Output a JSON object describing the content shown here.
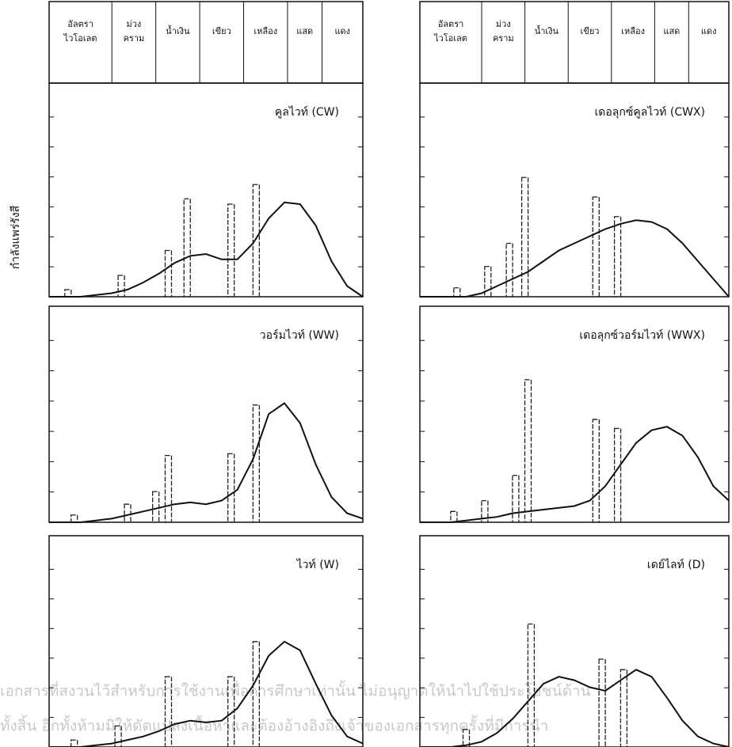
{
  "y_axis_label": "กำลังแพร่รังสี",
  "header": {
    "left": [
      "อัลตรา ไวโอเลต",
      "ม่วง คราม",
      "น้ำเงิน",
      "เขียว",
      "เหลือง",
      "แสด",
      "แดง"
    ],
    "right": [
      "อัลตรา ไวโอเลต",
      "ม่วง คราม",
      "น้ำเงิน",
      "เขียว",
      "เหลือง",
      "แสด",
      "แดง"
    ]
  },
  "watermark": [
    "เอกสารที่สงวนไว้สำหรับการใช้งานเพื่อการศึกษาเท่านั้น ไม่อนุญาตให้นำไปใช้ประโยชน์ด้าน",
    "ทั้งสิ้น อีกทั้งห้ามมิให้ดัดแปลงเนื้อหาและต้องอ้างอิงถึงเจ้าของเอกสารทุกครั้งที่มีการนำ"
  ],
  "chart_data": [
    {
      "type": "line",
      "title": "คูลไวท์ (CW)",
      "color": "#111111",
      "xlim": [
        0,
        100
      ],
      "ylim": [
        0,
        100
      ],
      "x": [
        0,
        5,
        10,
        15,
        20,
        25,
        30,
        35,
        40,
        45,
        50,
        55,
        60,
        65,
        70,
        75,
        80,
        85,
        90,
        95,
        100
      ],
      "values": [
        0,
        0,
        0,
        1,
        2,
        4,
        8,
        13,
        19,
        23,
        24,
        21,
        21,
        30,
        44,
        53,
        52,
        40,
        20,
        6,
        0
      ],
      "bar_x": [
        6,
        23,
        38,
        44,
        58,
        66
      ],
      "bar_values": [
        4,
        12,
        26,
        55,
        52,
        63
      ]
    },
    {
      "type": "line",
      "title": "เดอลุกซ์คูลไวท์ (CWX)",
      "color": "#111111",
      "xlim": [
        0,
        100
      ],
      "ylim": [
        0,
        100
      ],
      "x": [
        0,
        5,
        10,
        15,
        20,
        25,
        30,
        35,
        40,
        45,
        50,
        55,
        60,
        65,
        70,
        75,
        80,
        85,
        90,
        95,
        100
      ],
      "values": [
        0,
        0,
        0,
        0,
        2,
        6,
        10,
        14,
        20,
        26,
        30,
        34,
        38,
        41,
        43,
        42,
        38,
        30,
        20,
        10,
        0
      ],
      "bar_x": [
        12,
        22,
        29,
        34,
        57,
        64
      ],
      "bar_values": [
        5,
        17,
        30,
        67,
        56,
        45
      ]
    },
    {
      "type": "line",
      "title": "วอร์มไวท์ (WW)",
      "color": "#111111",
      "xlim": [
        0,
        100
      ],
      "ylim": [
        0,
        100
      ],
      "x": [
        0,
        5,
        10,
        15,
        20,
        25,
        30,
        35,
        40,
        45,
        50,
        55,
        60,
        65,
        70,
        75,
        80,
        85,
        90,
        95,
        100
      ],
      "values": [
        0,
        0,
        0,
        1,
        2,
        4,
        6,
        8,
        10,
        11,
        10,
        12,
        18,
        35,
        60,
        66,
        55,
        32,
        14,
        5,
        2
      ],
      "bar_x": [
        8,
        25,
        34,
        38,
        58,
        66
      ],
      "bar_values": [
        4,
        10,
        17,
        37,
        38,
        65
      ]
    },
    {
      "type": "line",
      "title": "เดอลุกซ์วอร์มไวท์ (WWX)",
      "color": "#111111",
      "xlim": [
        0,
        100
      ],
      "ylim": [
        0,
        100
      ],
      "x": [
        0,
        5,
        10,
        15,
        20,
        25,
        30,
        35,
        40,
        45,
        50,
        55,
        60,
        65,
        70,
        75,
        80,
        85,
        90,
        95,
        100
      ],
      "values": [
        0,
        0,
        0,
        1,
        2,
        3,
        5,
        6,
        7,
        8,
        9,
        12,
        20,
        32,
        44,
        51,
        53,
        48,
        36,
        20,
        12
      ],
      "bar_x": [
        11,
        21,
        31,
        35,
        57,
        64
      ],
      "bar_values": [
        6,
        12,
        26,
        79,
        57,
        52
      ]
    },
    {
      "type": "line",
      "title": "ไวท์ (W)",
      "color": "#111111",
      "xlim": [
        0,
        100
      ],
      "ylim": [
        0,
        100
      ],
      "x": [
        0,
        5,
        10,
        15,
        20,
        25,
        30,
        35,
        40,
        45,
        50,
        55,
        60,
        65,
        70,
        75,
        80,
        85,
        90,
        95,
        100
      ],
      "values": [
        0,
        0,
        0,
        1,
        2,
        4,
        6,
        9,
        13,
        15,
        14,
        15,
        22,
        35,
        52,
        60,
        55,
        36,
        18,
        6,
        2
      ],
      "bar_x": [
        8,
        22,
        38,
        58,
        66
      ],
      "bar_values": [
        4,
        12,
        40,
        40,
        60
      ]
    },
    {
      "type": "line",
      "title": "เดย์ไลท์ (D)",
      "color": "#111111",
      "xlim": [
        0,
        100
      ],
      "ylim": [
        0,
        100
      ],
      "x": [
        0,
        5,
        10,
        15,
        20,
        25,
        30,
        35,
        40,
        45,
        50,
        55,
        60,
        65,
        70,
        75,
        80,
        85,
        90,
        95,
        100
      ],
      "values": [
        0,
        0,
        0,
        1,
        3,
        8,
        16,
        26,
        36,
        40,
        38,
        34,
        32,
        38,
        44,
        40,
        28,
        15,
        6,
        2,
        0
      ],
      "bar_x": [
        15,
        36,
        59,
        66
      ],
      "bar_values": [
        10,
        70,
        50,
        44
      ]
    }
  ]
}
